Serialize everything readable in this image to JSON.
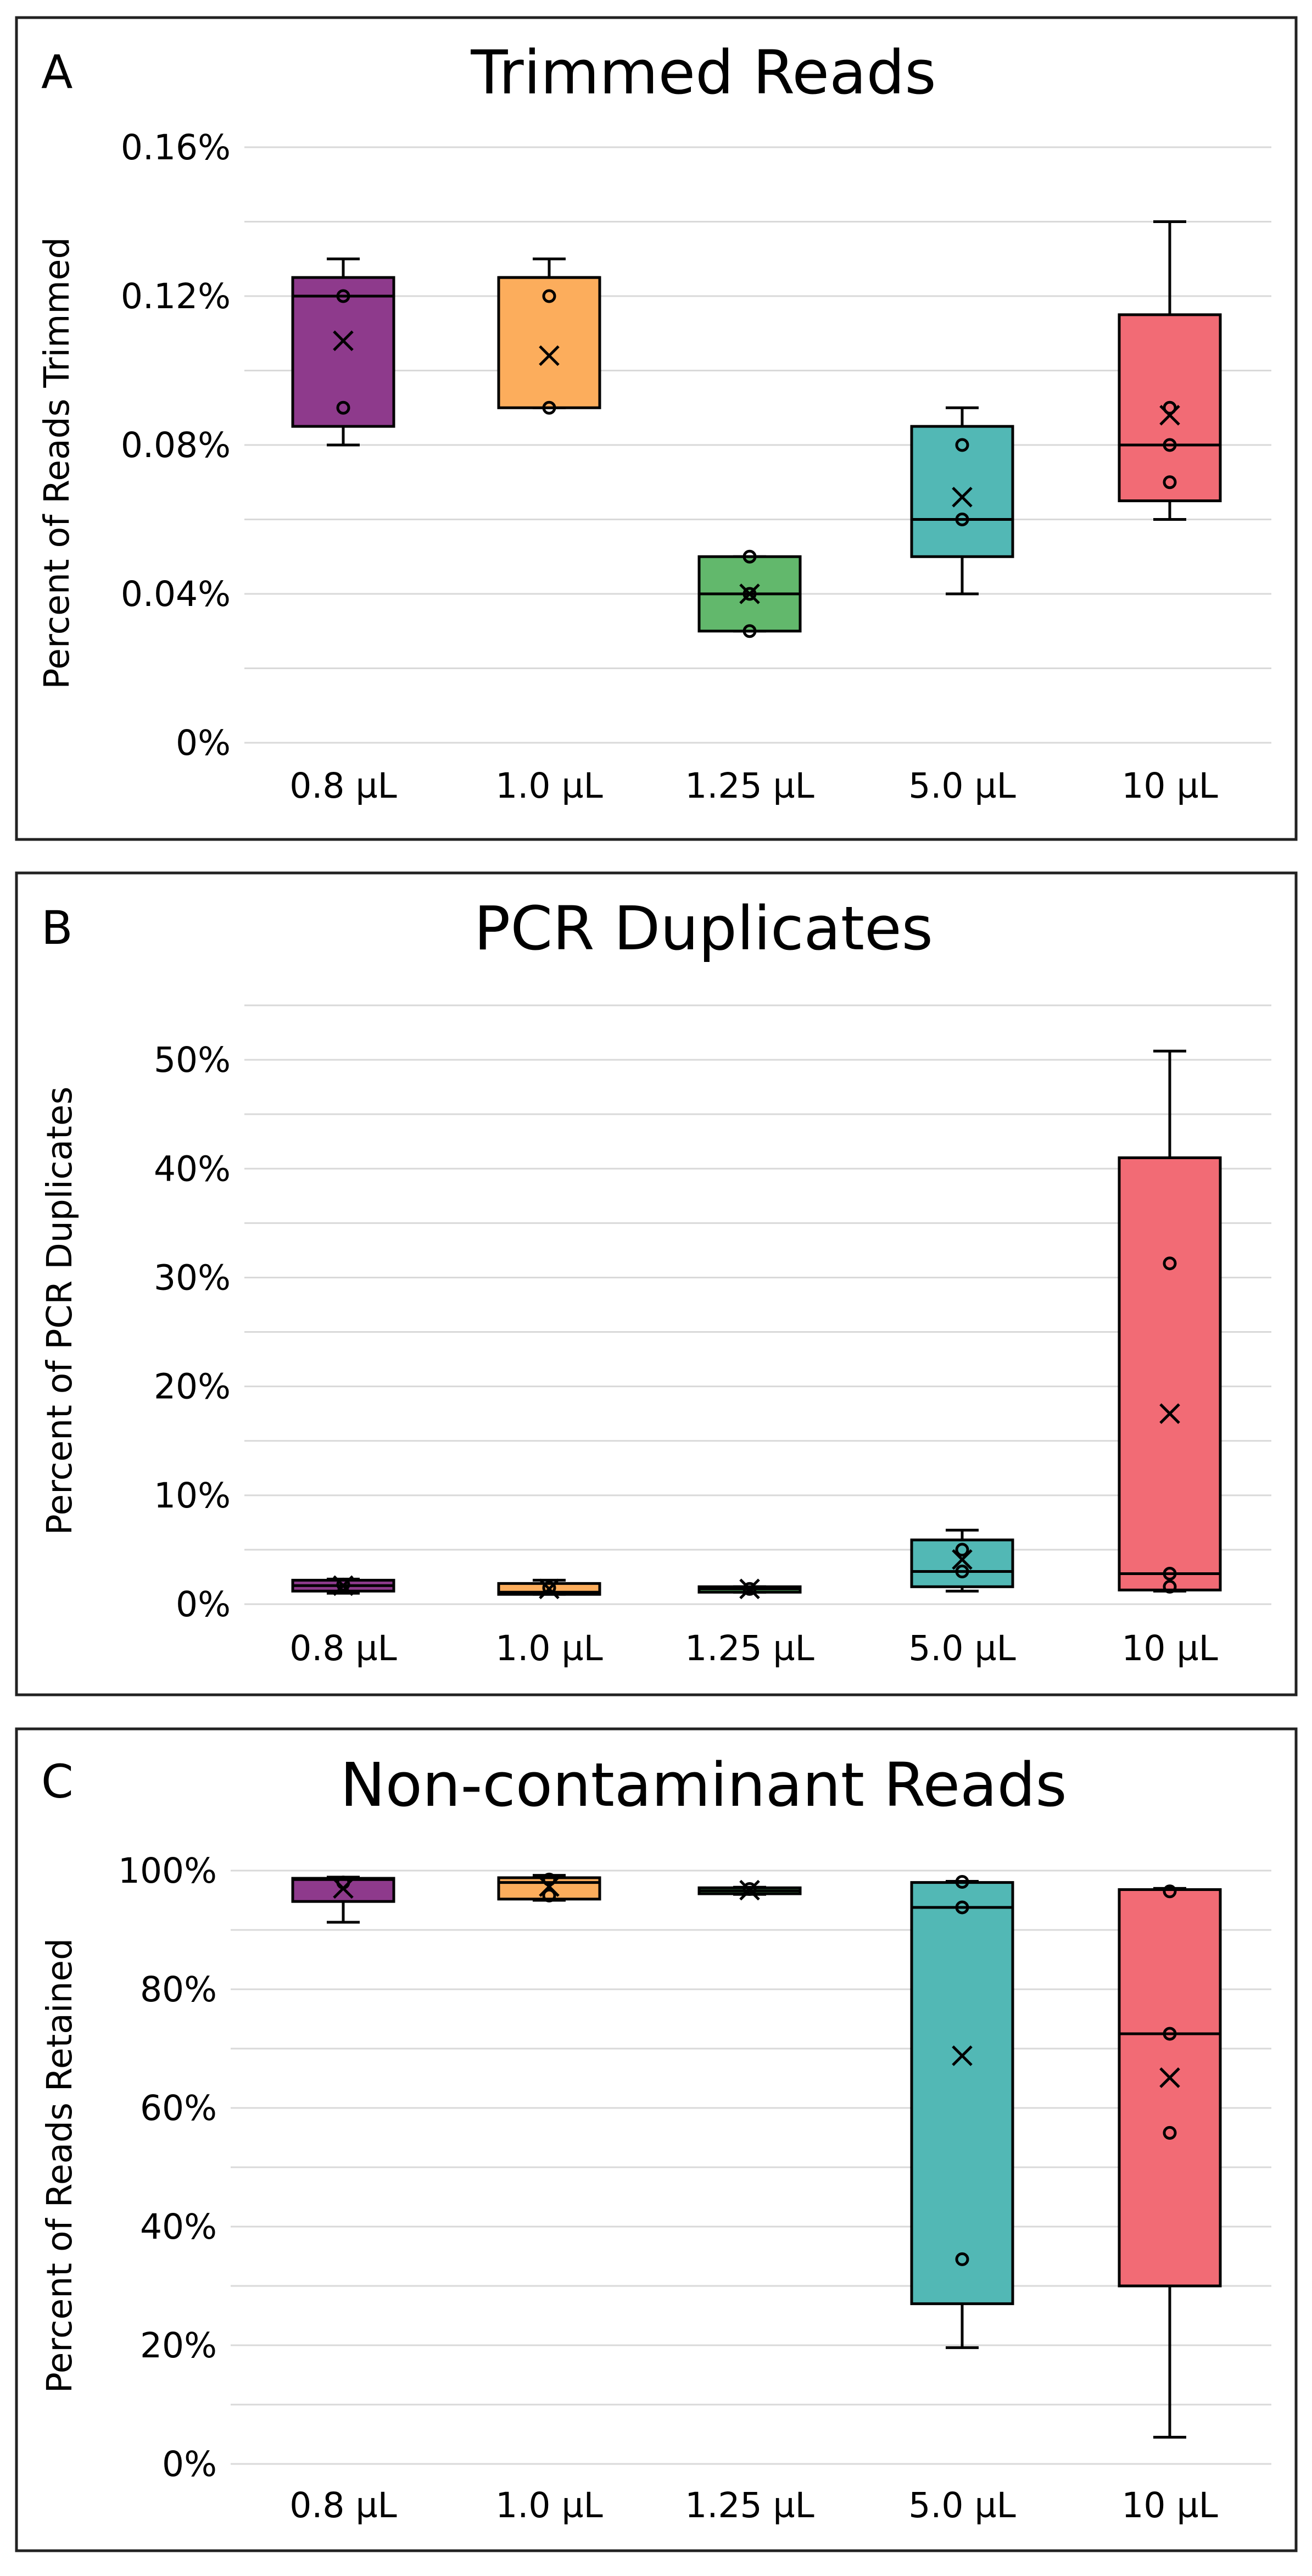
{
  "colors": {
    "c08": "#8e3a8c",
    "c10": "#fcad5c",
    "c125": "#62b86c",
    "c50": "#52b8b5",
    "c100": "#f26b75"
  },
  "chart_data": [
    {
      "type": "box",
      "panel_letter": "A",
      "title": "Trimmed Reads",
      "xlabel": "",
      "ylabel": "Percent of Reads Trimmed",
      "ylim": [
        0,
        0.16
      ],
      "yticks": [
        0,
        0.04,
        0.08,
        0.12,
        0.16
      ],
      "ytick_labels": [
        "0%",
        "0.04%",
        "0.08%",
        "0.12%",
        "0.16%"
      ],
      "minor_gridlines": [
        0.02,
        0.06,
        0.1,
        0.14
      ],
      "categories": [
        "0.8 µL",
        "1.0 µL",
        "1.25 µL",
        "5.0 µL",
        "10 µL"
      ],
      "color_keys": [
        "c08",
        "c10",
        "c125",
        "c50",
        "c100"
      ],
      "boxes": [
        {
          "min": 0.08,
          "q1": 0.085,
          "median": 0.12,
          "q3": 0.125,
          "max": 0.13,
          "mean": 0.108,
          "points": [
            0.12,
            0.09
          ]
        },
        {
          "min": 0.09,
          "q1": 0.09,
          "median": 0.125,
          "q3": 0.125,
          "max": 0.13,
          "mean": 0.104,
          "points": [
            0.12,
            0.09
          ]
        },
        {
          "min": 0.03,
          "q1": 0.03,
          "median": 0.04,
          "q3": 0.05,
          "max": 0.05,
          "mean": 0.04,
          "points": [
            0.05,
            0.04,
            0.03
          ]
        },
        {
          "min": 0.04,
          "q1": 0.05,
          "median": 0.06,
          "q3": 0.085,
          "max": 0.09,
          "mean": 0.066,
          "points": [
            0.08,
            0.06
          ]
        },
        {
          "min": 0.06,
          "q1": 0.065,
          "median": 0.08,
          "q3": 0.115,
          "max": 0.14,
          "mean": 0.088,
          "points": [
            0.09,
            0.08,
            0.07
          ]
        }
      ]
    },
    {
      "type": "box",
      "panel_letter": "B",
      "title": "PCR Duplicates",
      "xlabel": "",
      "ylabel": "Percent of PCR Duplicates",
      "ylim": [
        0,
        55
      ],
      "yticks": [
        0,
        10,
        20,
        30,
        40,
        50
      ],
      "ytick_labels": [
        "0%",
        "10%",
        "20%",
        "30%",
        "40%",
        "50%"
      ],
      "minor_gridlines": [
        5,
        15,
        25,
        35,
        45,
        55
      ],
      "categories": [
        "0.8 µL",
        "1.0 µL",
        "1.25 µL",
        "5.0 µL",
        "10 µL"
      ],
      "color_keys": [
        "c08",
        "c10",
        "c125",
        "c50",
        "c100"
      ],
      "boxes": [
        {
          "min": 1.0,
          "q1": 1.2,
          "median": 1.7,
          "q3": 2.2,
          "max": 2.3,
          "mean": 1.7,
          "points": [
            1.8
          ]
        },
        {
          "min": 0.9,
          "q1": 0.9,
          "median": 1.1,
          "q3": 1.9,
          "max": 2.2,
          "mean": 1.4,
          "points": [
            1.5
          ]
        },
        {
          "min": 1.1,
          "q1": 1.1,
          "median": 1.4,
          "q3": 1.6,
          "max": 1.6,
          "mean": 1.4,
          "points": [
            1.4
          ]
        },
        {
          "min": 1.2,
          "q1": 1.6,
          "median": 3.0,
          "q3": 5.9,
          "max": 6.8,
          "mean": 4.1,
          "points": [
            5.0,
            3.0
          ]
        },
        {
          "min": 1.2,
          "q1": 1.3,
          "median": 2.8,
          "q3": 41.0,
          "max": 50.8,
          "mean": 17.5,
          "points": [
            31.3,
            2.8,
            1.6
          ]
        }
      ]
    },
    {
      "type": "box",
      "panel_letter": "C",
      "title": "Non-contaminant Reads",
      "xlabel": "",
      "ylabel": "Percent of Reads Retained",
      "ylim": [
        0,
        100
      ],
      "yticks": [
        0,
        20,
        40,
        60,
        80,
        100
      ],
      "ytick_labels": [
        "0%",
        "20%",
        "40%",
        "60%",
        "80%",
        "100%"
      ],
      "minor_gridlines": [
        10,
        30,
        50,
        70,
        90
      ],
      "categories": [
        "0.8 µL",
        "1.0 µL",
        "1.25 µL",
        "5.0 µL",
        "10 µL"
      ],
      "color_keys": [
        "c08",
        "c10",
        "c125",
        "c50",
        "c100"
      ],
      "boxes": [
        {
          "min": 91.3,
          "q1": 94.8,
          "median": 98.5,
          "q3": 98.7,
          "max": 98.9,
          "mean": 97.0,
          "points": [
            98.0
          ]
        },
        {
          "min": 95.0,
          "q1": 95.2,
          "median": 98.0,
          "q3": 98.8,
          "max": 99.2,
          "mean": 97.3,
          "points": [
            98.5,
            95.8
          ]
        },
        {
          "min": 96.0,
          "q1": 96.1,
          "median": 96.6,
          "q3": 97.1,
          "max": 97.2,
          "mean": 96.7,
          "points": [
            96.9
          ]
        },
        {
          "min": 19.6,
          "q1": 27.0,
          "median": 93.8,
          "q3": 98.0,
          "max": 98.2,
          "mean": 68.8,
          "points": [
            98.1,
            93.8,
            34.5
          ]
        },
        {
          "min": 4.5,
          "q1": 30.0,
          "median": 72.5,
          "q3": 96.8,
          "max": 97.0,
          "mean": 65.1,
          "points": [
            96.5,
            72.5,
            55.8
          ]
        }
      ]
    }
  ]
}
